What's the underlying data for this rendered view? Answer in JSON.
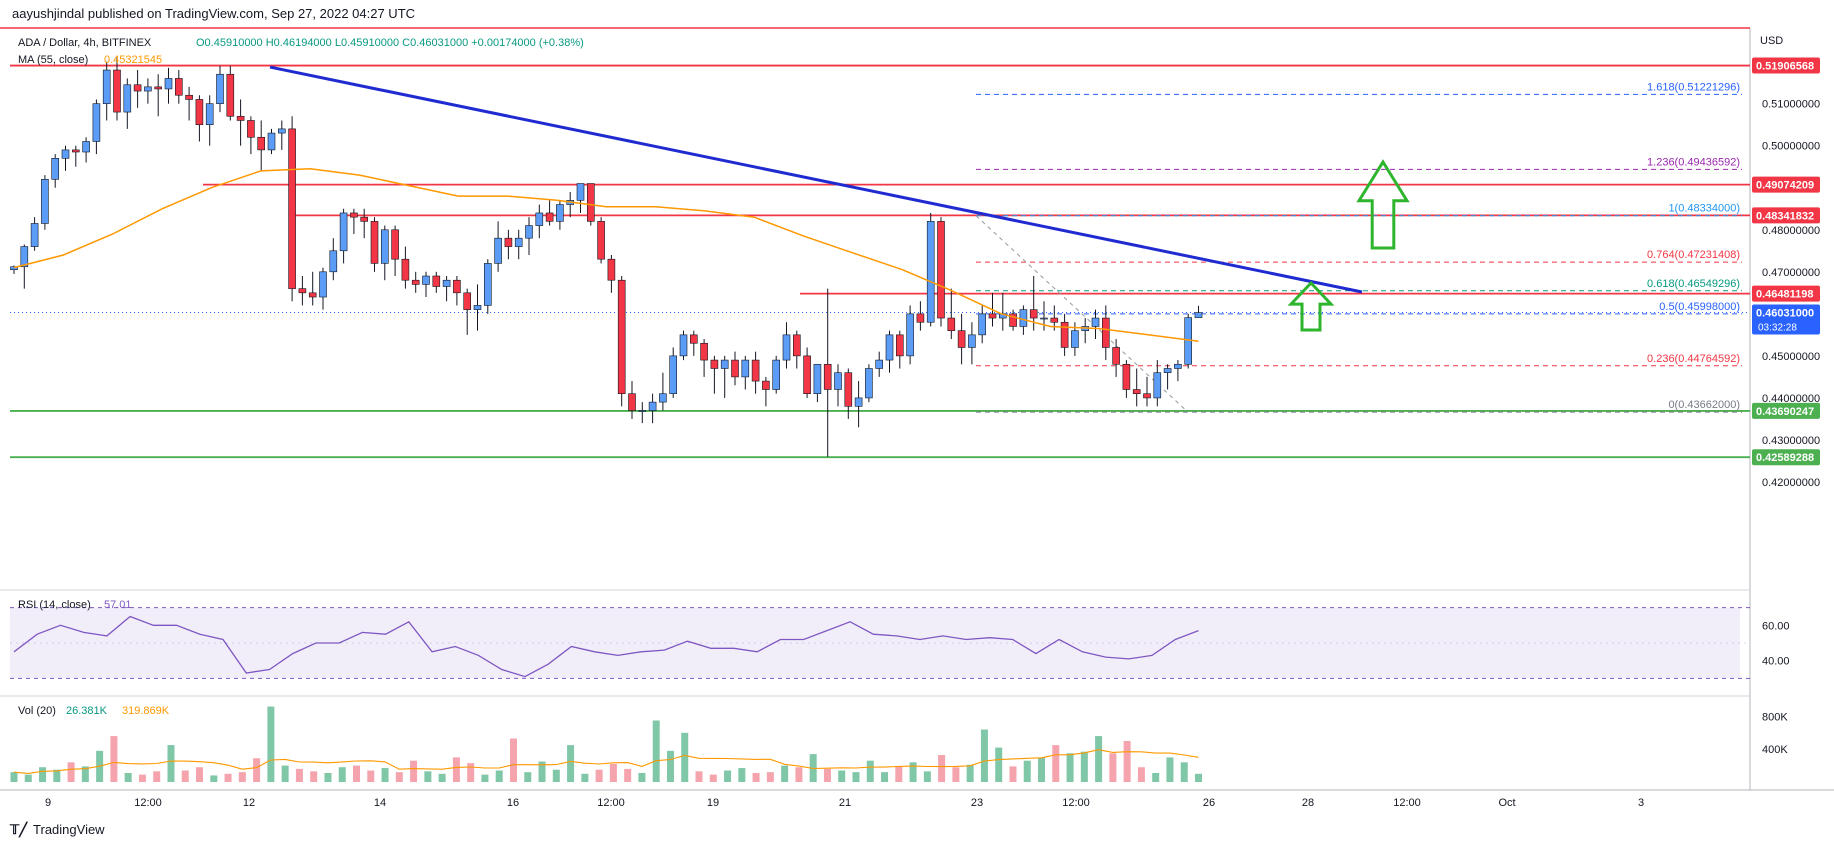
{
  "header": {
    "published": "aayushjindal published on TradingView.com, Sep 27, 2022 04:27 UTC"
  },
  "legend": {
    "symbol": "ADA / Dollar, 4h, BITFINEX",
    "ohlc": "O0.45910000 H0.46194000 L0.45910000 C0.46031000 +0.00174000 (+0.38%)",
    "ma_label": "MA (55, close)",
    "ma_value": "0.45321545"
  },
  "price_axis": {
    "currency": "USD",
    "ticks": [
      "0.51000000",
      "0.50000000",
      "0.48000000",
      "0.47000000",
      "0.45000000",
      "0.44000000",
      "0.43000000",
      "0.42000000"
    ],
    "tick_values": [
      0.51,
      0.5,
      0.48,
      0.47,
      0.45,
      0.44,
      0.43,
      0.42
    ]
  },
  "horizontal_levels": [
    {
      "label": "0.51906568",
      "value": 0.51906568,
      "color": "#f23645"
    },
    {
      "label": "0.49074209",
      "value": 0.49074209,
      "color": "#f23645"
    },
    {
      "label": "0.48341832",
      "value": 0.48341832,
      "color": "#f23645"
    },
    {
      "label": "0.46481198",
      "value": 0.46481198,
      "color": "#f23645"
    },
    {
      "label": "0.43690247",
      "value": 0.43690247,
      "color": "#4caf50"
    },
    {
      "label": "0.42589288",
      "value": 0.42589288,
      "color": "#4caf50"
    }
  ],
  "current_price": {
    "label": "0.46031000",
    "countdown": "03:32:28",
    "value": 0.46031,
    "color": "#2962ff"
  },
  "fib_levels": [
    {
      "label": "1.618(0.51221296)",
      "value": 0.51221296,
      "color": "#2962ff"
    },
    {
      "label": "1.236(0.49436592)",
      "value": 0.49436592,
      "color": "#9c27b0"
    },
    {
      "label": "1(0.48334000)",
      "value": 0.48334,
      "color": "#2196f3"
    },
    {
      "label": "0.764(0.47231408)",
      "value": 0.47231408,
      "color": "#f23645"
    },
    {
      "label": "0.618(0.46549296)",
      "value": 0.46549296,
      "color": "#089981"
    },
    {
      "label": "0.5(0.45998000)",
      "value": 0.45998,
      "color": "#2962ff"
    },
    {
      "label": "0.236(0.44764592)",
      "value": 0.44764592,
      "color": "#f23645"
    },
    {
      "label": "0(0.43662000)",
      "value": 0.43662,
      "color": "#787b86"
    }
  ],
  "time_axis": {
    "labels": [
      "9",
      "12:00",
      "12",
      "14",
      "16",
      "12:00",
      "19",
      "21",
      "23",
      "12:00",
      "26",
      "28",
      "12:00",
      "Oct",
      "3"
    ]
  },
  "rsi": {
    "label": "RSI (14, close)",
    "value": "57.01",
    "ticks": [
      "60.00",
      "40.00"
    ],
    "tick_values": [
      60,
      40
    ],
    "color": "#7e57c2"
  },
  "volume": {
    "label": "Vol (20)",
    "value1": "26.381K",
    "value2": "319.869K",
    "ticks": [
      "800K",
      "400K"
    ],
    "tick_values": [
      800,
      400
    ]
  },
  "colors": {
    "up": "#5b9cf6",
    "down": "#f23645",
    "ma": "#ff9800",
    "trendline": "#1f2bd1",
    "arrow": "#2db52d"
  },
  "chart_data": {
    "type": "candlestick",
    "title": "ADA / Dollar, 4h, BITFINEX",
    "ylabel": "USD",
    "ylim": [
      0.415,
      0.528
    ],
    "candles": [
      [
        0.4705,
        0.4715,
        0.4695,
        0.4712
      ],
      [
        0.4712,
        0.4765,
        0.466,
        0.476
      ],
      [
        0.476,
        0.483,
        0.475,
        0.4815
      ],
      [
        0.4815,
        0.493,
        0.48,
        0.492
      ],
      [
        0.492,
        0.498,
        0.49,
        0.497
      ],
      [
        0.497,
        0.5,
        0.494,
        0.499
      ],
      [
        0.499,
        0.5,
        0.495,
        0.4985
      ],
      [
        0.4985,
        0.502,
        0.496,
        0.501
      ],
      [
        0.501,
        0.511,
        0.498,
        0.51
      ],
      [
        0.51,
        0.52,
        0.506,
        0.518
      ],
      [
        0.518,
        0.521,
        0.506,
        0.508
      ],
      [
        0.508,
        0.516,
        0.504,
        0.5145
      ],
      [
        0.5145,
        0.518,
        0.509,
        0.513
      ],
      [
        0.513,
        0.516,
        0.51,
        0.514
      ],
      [
        0.514,
        0.517,
        0.507,
        0.5135
      ],
      [
        0.5135,
        0.5185,
        0.51,
        0.516
      ],
      [
        0.516,
        0.518,
        0.51,
        0.512
      ],
      [
        0.512,
        0.514,
        0.506,
        0.511
      ],
      [
        0.511,
        0.512,
        0.501,
        0.505
      ],
      [
        0.505,
        0.512,
        0.5,
        0.51
      ],
      [
        0.51,
        0.519,
        0.508,
        0.517
      ],
      [
        0.517,
        0.519,
        0.506,
        0.507
      ],
      [
        0.507,
        0.511,
        0.5,
        0.506
      ],
      [
        0.506,
        0.507,
        0.498,
        0.502
      ],
      [
        0.502,
        0.506,
        0.494,
        0.499
      ],
      [
        0.499,
        0.504,
        0.498,
        0.503
      ],
      [
        0.503,
        0.506,
        0.499,
        0.504
      ],
      [
        0.504,
        0.507,
        0.463,
        0.466
      ],
      [
        0.466,
        0.469,
        0.462,
        0.465
      ],
      [
        0.465,
        0.47,
        0.462,
        0.464
      ],
      [
        0.464,
        0.471,
        0.461,
        0.47
      ],
      [
        0.47,
        0.478,
        0.468,
        0.475
      ],
      [
        0.475,
        0.485,
        0.472,
        0.484
      ],
      [
        0.484,
        0.485,
        0.479,
        0.483
      ],
      [
        0.483,
        0.485,
        0.478,
        0.482
      ],
      [
        0.482,
        0.483,
        0.47,
        0.472
      ],
      [
        0.472,
        0.481,
        0.468,
        0.48
      ],
      [
        0.48,
        0.481,
        0.469,
        0.473
      ],
      [
        0.473,
        0.476,
        0.466,
        0.468
      ],
      [
        0.468,
        0.47,
        0.465,
        0.467
      ],
      [
        0.467,
        0.47,
        0.464,
        0.469
      ],
      [
        0.469,
        0.47,
        0.465,
        0.4665
      ],
      [
        0.4665,
        0.469,
        0.463,
        0.468
      ],
      [
        0.468,
        0.469,
        0.462,
        0.465
      ],
      [
        0.465,
        0.466,
        0.455,
        0.461
      ],
      [
        0.461,
        0.467,
        0.456,
        0.462
      ],
      [
        0.462,
        0.473,
        0.46,
        0.472
      ],
      [
        0.472,
        0.482,
        0.47,
        0.478
      ],
      [
        0.478,
        0.48,
        0.473,
        0.476
      ],
      [
        0.476,
        0.48,
        0.473,
        0.478
      ],
      [
        0.478,
        0.483,
        0.474,
        0.481
      ],
      [
        0.481,
        0.486,
        0.478,
        0.484
      ],
      [
        0.484,
        0.487,
        0.481,
        0.482
      ],
      [
        0.482,
        0.487,
        0.48,
        0.486
      ],
      [
        0.486,
        0.489,
        0.483,
        0.487
      ],
      [
        0.487,
        0.491,
        0.484,
        0.491
      ],
      [
        0.491,
        0.491,
        0.481,
        0.482
      ],
      [
        0.482,
        0.483,
        0.472,
        0.473
      ],
      [
        0.473,
        0.474,
        0.465,
        0.468
      ],
      [
        0.468,
        0.469,
        0.438,
        0.441
      ],
      [
        0.441,
        0.444,
        0.435,
        0.437
      ],
      [
        0.437,
        0.439,
        0.434,
        0.437
      ],
      [
        0.437,
        0.441,
        0.434,
        0.439
      ],
      [
        0.439,
        0.446,
        0.437,
        0.441
      ],
      [
        0.441,
        0.452,
        0.44,
        0.45
      ],
      [
        0.45,
        0.456,
        0.449,
        0.455
      ],
      [
        0.455,
        0.456,
        0.45,
        0.453
      ],
      [
        0.453,
        0.454,
        0.445,
        0.449
      ],
      [
        0.449,
        0.45,
        0.441,
        0.447
      ],
      [
        0.447,
        0.45,
        0.44,
        0.449
      ],
      [
        0.449,
        0.451,
        0.443,
        0.445
      ],
      [
        0.445,
        0.45,
        0.442,
        0.449
      ],
      [
        0.449,
        0.451,
        0.441,
        0.444
      ],
      [
        0.444,
        0.445,
        0.438,
        0.442
      ],
      [
        0.442,
        0.45,
        0.441,
        0.449
      ],
      [
        0.449,
        0.458,
        0.447,
        0.455
      ],
      [
        0.455,
        0.456,
        0.447,
        0.45
      ],
      [
        0.45,
        0.452,
        0.44,
        0.441
      ],
      [
        0.441,
        0.448,
        0.439,
        0.448
      ],
      [
        0.448,
        0.466,
        0.426,
        0.442
      ],
      [
        0.442,
        0.448,
        0.438,
        0.446
      ],
      [
        0.446,
        0.447,
        0.435,
        0.438
      ],
      [
        0.438,
        0.444,
        0.433,
        0.44
      ],
      [
        0.44,
        0.448,
        0.439,
        0.447
      ],
      [
        0.447,
        0.451,
        0.445,
        0.449
      ],
      [
        0.449,
        0.456,
        0.446,
        0.455
      ],
      [
        0.455,
        0.456,
        0.447,
        0.45
      ],
      [
        0.45,
        0.462,
        0.448,
        0.46
      ],
      [
        0.46,
        0.463,
        0.456,
        0.458
      ],
      [
        0.458,
        0.484,
        0.457,
        0.482
      ],
      [
        0.482,
        0.483,
        0.457,
        0.459
      ],
      [
        0.459,
        0.466,
        0.454,
        0.456
      ],
      [
        0.456,
        0.46,
        0.448,
        0.452
      ],
      [
        0.452,
        0.458,
        0.448,
        0.455
      ],
      [
        0.455,
        0.462,
        0.453,
        0.46
      ],
      [
        0.46,
        0.465,
        0.457,
        0.459
      ],
      [
        0.459,
        0.465,
        0.456,
        0.46
      ],
      [
        0.46,
        0.461,
        0.456,
        0.457
      ],
      [
        0.457,
        0.462,
        0.455,
        0.461
      ],
      [
        0.461,
        0.469,
        0.456,
        0.459
      ],
      [
        0.459,
        0.463,
        0.456,
        0.459
      ],
      [
        0.459,
        0.462,
        0.456,
        0.458
      ],
      [
        0.458,
        0.46,
        0.45,
        0.452
      ],
      [
        0.452,
        0.458,
        0.45,
        0.456
      ],
      [
        0.456,
        0.459,
        0.453,
        0.457
      ],
      [
        0.457,
        0.461,
        0.454,
        0.459
      ],
      [
        0.459,
        0.462,
        0.449,
        0.452
      ],
      [
        0.452,
        0.454,
        0.445,
        0.448
      ],
      [
        0.448,
        0.449,
        0.44,
        0.442
      ],
      [
        0.442,
        0.447,
        0.438,
        0.441
      ],
      [
        0.441,
        0.445,
        0.438,
        0.44
      ],
      [
        0.44,
        0.449,
        0.438,
        0.446
      ],
      [
        0.446,
        0.448,
        0.442,
        0.447
      ],
      [
        0.447,
        0.449,
        0.444,
        0.448
      ],
      [
        0.448,
        0.46,
        0.447,
        0.4591
      ],
      [
        0.4591,
        0.4619,
        0.4591,
        0.4603
      ]
    ],
    "ma55": [
      0.471,
      0.474,
      0.479,
      0.485,
      0.49,
      0.494,
      0.4945,
      0.493,
      0.4905,
      0.488,
      0.488,
      0.487,
      0.4855,
      0.4855,
      0.4845,
      0.483,
      0.4785,
      0.4745,
      0.4705,
      0.4655,
      0.46,
      0.457,
      0.4565,
      0.455,
      0.4535
    ],
    "rsi_values": [
      45,
      55,
      60,
      56,
      54,
      65,
      60,
      60,
      55,
      52,
      33,
      35,
      44,
      50,
      50,
      56,
      55,
      62,
      45,
      48,
      43,
      35,
      31,
      38,
      48,
      45,
      43,
      45,
      46,
      51,
      47,
      47,
      45,
      52,
      52,
      57,
      62,
      55,
      54,
      52,
      54,
      52,
      53,
      52,
      44,
      52,
      45,
      42,
      41,
      43,
      52,
      57
    ],
    "volume_values": [
      120,
      90,
      180,
      150,
      240,
      190,
      380,
      560,
      110,
      90,
      130,
      450,
      140,
      180,
      80,
      100,
      120,
      290,
      920,
      200,
      160,
      130,
      110,
      180,
      200,
      140,
      170,
      120,
      260,
      130,
      100,
      300,
      230,
      90,
      140,
      530,
      120,
      250,
      150,
      450,
      100,
      150,
      220,
      160,
      110,
      750,
      380,
      600,
      130,
      90,
      140,
      170,
      110,
      120,
      200,
      180,
      340,
      160,
      140,
      120,
      260,
      120,
      190,
      240,
      130,
      330,
      180,
      210,
      640,
      420,
      190,
      260,
      300,
      450,
      350,
      370,
      560,
      350,
      500,
      180,
      110,
      300,
      240,
      100
    ]
  }
}
